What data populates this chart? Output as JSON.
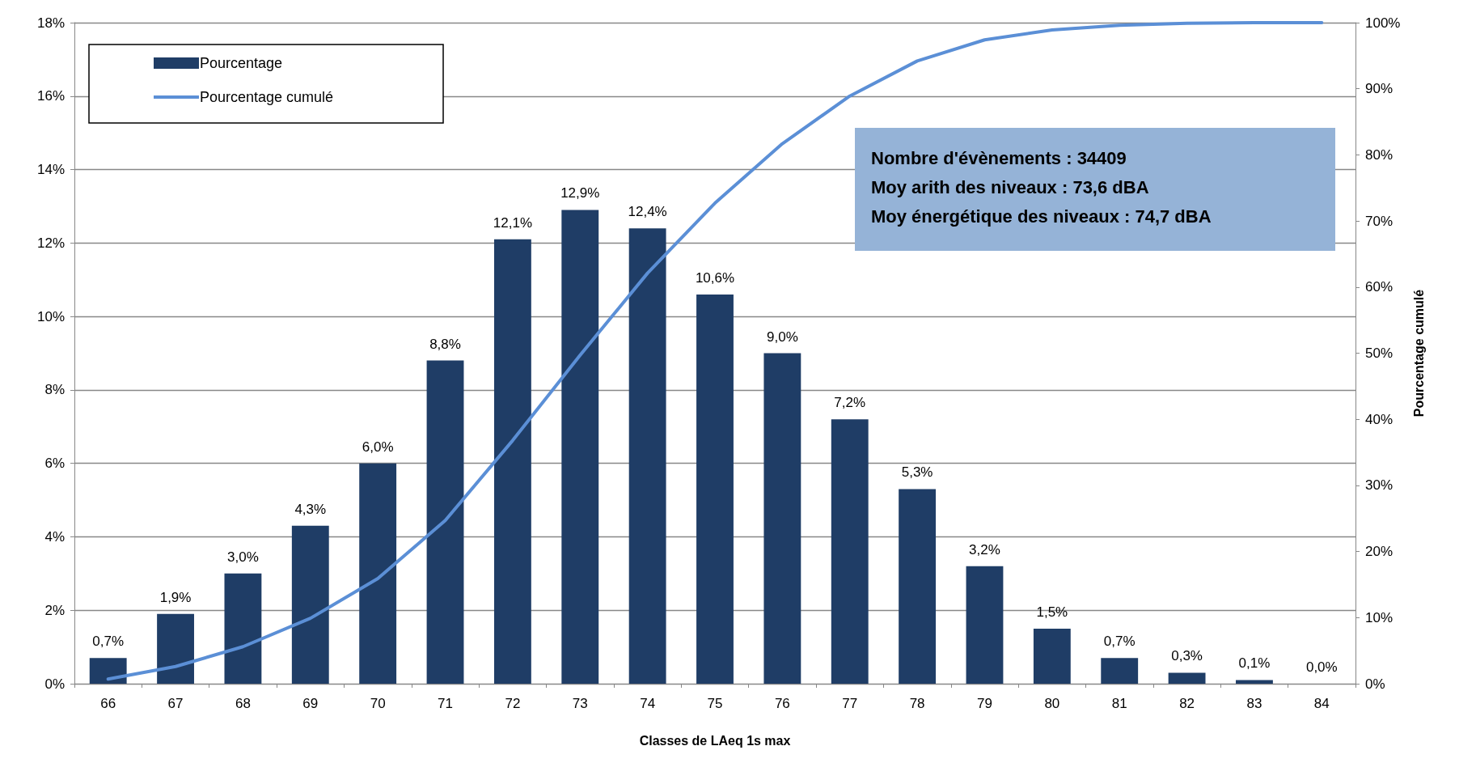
{
  "chart_data": {
    "type": "bar",
    "xlabel": "Classes de LAeq 1s max",
    "y2label": "Pourcentage cumulé",
    "categories": [
      "66",
      "67",
      "68",
      "69",
      "70",
      "71",
      "72",
      "73",
      "74",
      "75",
      "76",
      "77",
      "78",
      "79",
      "80",
      "81",
      "82",
      "83",
      "84"
    ],
    "series": [
      {
        "name": "Pourcentage",
        "color": "#1f3d66",
        "values": [
          0.7,
          1.9,
          3.0,
          4.3,
          6.0,
          8.8,
          12.1,
          12.9,
          12.4,
          10.6,
          9.0,
          7.2,
          5.3,
          3.2,
          1.5,
          0.7,
          0.3,
          0.1,
          0.0
        ],
        "value_labels": [
          "0,7%",
          "1,9%",
          "3,0%",
          "4,3%",
          "6,0%",
          "8,8%",
          "12,1%",
          "12,9%",
          "12,4%",
          "10,6%",
          "9,0%",
          "7,2%",
          "5,3%",
          "3,2%",
          "1,5%",
          "0,7%",
          "0,3%",
          "0,1%",
          "0,0%"
        ]
      },
      {
        "name": "Pourcentage cumulé",
        "type": "line",
        "axis": "y2",
        "color": "#5b8fd6",
        "values": [
          0.7,
          2.6,
          5.6,
          9.9,
          15.9,
          24.7,
          36.8,
          49.7,
          62.1,
          72.7,
          81.7,
          88.9,
          94.2,
          97.4,
          98.9,
          99.6,
          99.9,
          100,
          100
        ]
      }
    ],
    "ylim": [
      0,
      18
    ],
    "yticks": [
      {
        "value": 0,
        "label": "0%"
      },
      {
        "value": 2,
        "label": "2%"
      },
      {
        "value": 4,
        "label": "4%"
      },
      {
        "value": 6,
        "label": "6%"
      },
      {
        "value": 8,
        "label": "8%"
      },
      {
        "value": 10,
        "label": "10%"
      },
      {
        "value": 12,
        "label": "12%"
      },
      {
        "value": 14,
        "label": "14%"
      },
      {
        "value": 16,
        "label": "16%"
      },
      {
        "value": 18,
        "label": "18%"
      }
    ],
    "y2lim": [
      0,
      100
    ],
    "y2ticks": [
      {
        "value": 0,
        "label": "0%"
      },
      {
        "value": 10,
        "label": "10%"
      },
      {
        "value": 20,
        "label": "20%"
      },
      {
        "value": 30,
        "label": "30%"
      },
      {
        "value": 40,
        "label": "40%"
      },
      {
        "value": 50,
        "label": "50%"
      },
      {
        "value": 60,
        "label": "60%"
      },
      {
        "value": 70,
        "label": "70%"
      },
      {
        "value": 80,
        "label": "80%"
      },
      {
        "value": 90,
        "label": "90%"
      },
      {
        "value": 100,
        "label": "100%"
      }
    ],
    "grid": "y",
    "legend": "top left",
    "marker": "none",
    "line_style": "solid",
    "annotations": [
      "Nombre d'évènements : 34409",
      "Moy arith des niveaux : 73,6 dBA",
      "Moy énergétique des niveaux : 74,7 dBA"
    ]
  }
}
